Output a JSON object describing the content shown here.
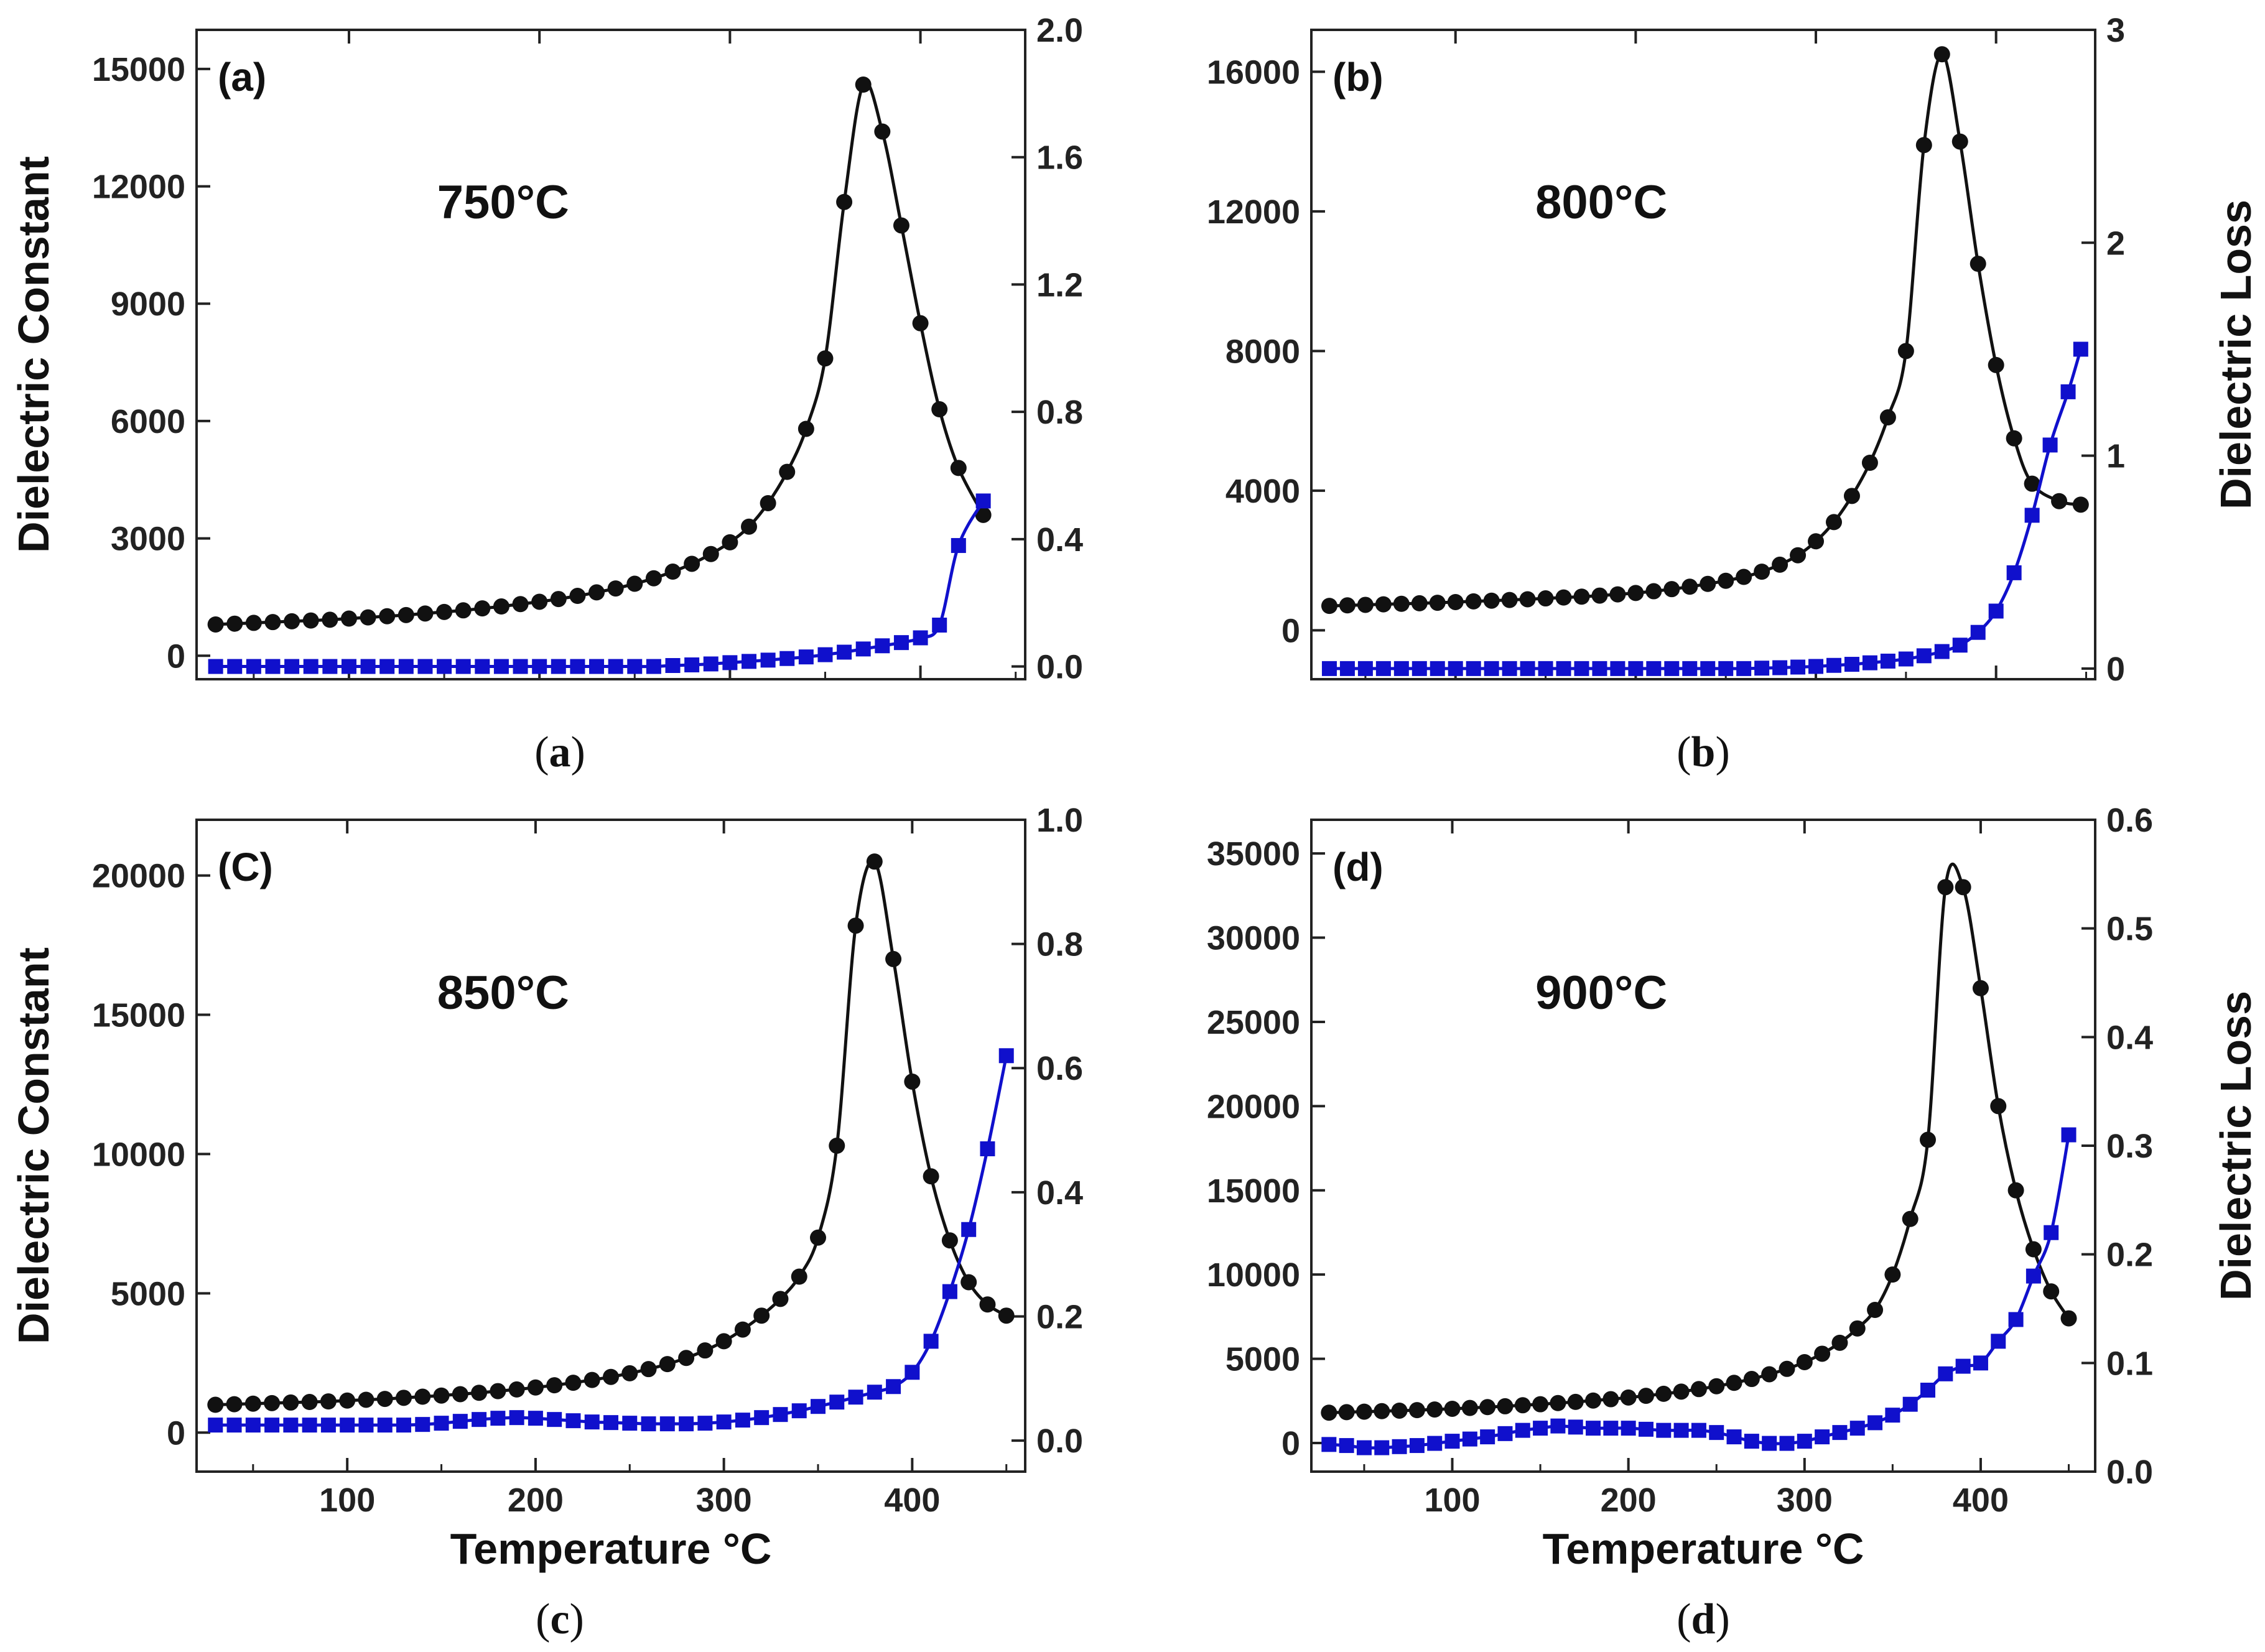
{
  "chart_data": [
    {
      "type": "line",
      "panel_tag": "(a)",
      "caption_letter": "a",
      "annotation": "750°C",
      "xlabel": "",
      "xlim": [
        20,
        455
      ],
      "xticks": [
        100,
        200,
        300,
        400
      ],
      "show_x_tick_labels": false,
      "ylabel_left": "Dielectric Constant",
      "ylim_left": [
        -600,
        16000
      ],
      "yticks_left": [
        0,
        3000,
        6000,
        9000,
        12000,
        15000
      ],
      "ylabel_right": "",
      "ylim_right": [
        -0.04,
        2.0
      ],
      "yticks_right": [
        0.0,
        0.4,
        0.8,
        1.2,
        1.6,
        2.0
      ],
      "series": [
        {
          "name": "Dielectric Constant",
          "axis": "left",
          "color": "#111111",
          "marker": "circle",
          "x": [
            30,
            40,
            50,
            60,
            70,
            80,
            90,
            100,
            110,
            120,
            130,
            140,
            150,
            160,
            170,
            180,
            190,
            200,
            210,
            220,
            230,
            240,
            250,
            260,
            270,
            280,
            290,
            300,
            310,
            320,
            330,
            340,
            350,
            360,
            370,
            380,
            390,
            400,
            410,
            420,
            433
          ],
          "y": [
            800,
            820,
            840,
            860,
            880,
            900,
            920,
            950,
            980,
            1010,
            1040,
            1080,
            1120,
            1160,
            1210,
            1260,
            1320,
            1380,
            1450,
            1530,
            1620,
            1720,
            1840,
            1980,
            2150,
            2350,
            2600,
            2900,
            3300,
            3900,
            4700,
            5800,
            7600,
            11600,
            14600,
            13400,
            11000,
            8500,
            6300,
            4800,
            3600
          ]
        },
        {
          "name": "Dielectric Loss",
          "axis": "right",
          "color": "#1010cc",
          "marker": "square",
          "x": [
            30,
            40,
            50,
            60,
            70,
            80,
            90,
            100,
            110,
            120,
            130,
            140,
            150,
            160,
            170,
            180,
            190,
            200,
            210,
            220,
            230,
            240,
            250,
            260,
            270,
            280,
            290,
            300,
            310,
            320,
            330,
            340,
            350,
            360,
            370,
            380,
            390,
            400,
            410,
            420,
            433
          ],
          "y": [
            0.0,
            0.0,
            0.0,
            0.0,
            0.0,
            0.0,
            0.0,
            0.0,
            0.0,
            0.0,
            0.0,
            0.0,
            0.0,
            0.0,
            0.0,
            0.0,
            0.0,
            0.0,
            0.0,
            0.0,
            0.0,
            0.0,
            0.0,
            0.0,
            0.003,
            0.005,
            0.008,
            0.012,
            0.016,
            0.02,
            0.025,
            0.03,
            0.037,
            0.045,
            0.055,
            0.065,
            0.075,
            0.09,
            0.13,
            0.38,
            0.52
          ]
        }
      ]
    },
    {
      "type": "line",
      "panel_tag": "(b)",
      "caption_letter": "b",
      "annotation": "800°C",
      "xlabel": "",
      "xlim": [
        20,
        455
      ],
      "xticks": [
        100,
        200,
        300,
        400
      ],
      "show_x_tick_labels": false,
      "ylabel_left": "",
      "ylim_left": [
        -1400,
        17200
      ],
      "yticks_left": [
        0,
        4000,
        8000,
        12000,
        16000
      ],
      "ylabel_right": "Dielectric Loss",
      "ylim_right": [
        -0.05,
        3.0
      ],
      "yticks_right": [
        0,
        1,
        2,
        3
      ],
      "series": [
        {
          "name": "Dielectric Constant",
          "axis": "left",
          "color": "#111111",
          "marker": "circle",
          "x": [
            30,
            40,
            50,
            60,
            70,
            80,
            90,
            100,
            110,
            120,
            130,
            140,
            150,
            160,
            170,
            180,
            190,
            200,
            210,
            220,
            230,
            240,
            250,
            260,
            270,
            280,
            290,
            300,
            310,
            320,
            330,
            340,
            350,
            360,
            370,
            380,
            390,
            400,
            410,
            420,
            435,
            447
          ],
          "y": [
            700,
            715,
            730,
            745,
            760,
            775,
            790,
            810,
            830,
            850,
            870,
            890,
            915,
            940,
            965,
            995,
            1030,
            1070,
            1120,
            1180,
            1250,
            1330,
            1420,
            1530,
            1680,
            1880,
            2150,
            2550,
            3100,
            3850,
            4800,
            6100,
            8000,
            13900,
            16500,
            14000,
            10500,
            7600,
            5500,
            4200,
            3700,
            3600
          ]
        },
        {
          "name": "Dielectric Loss",
          "axis": "right",
          "color": "#1010cc",
          "marker": "square",
          "x": [
            30,
            40,
            50,
            60,
            70,
            80,
            90,
            100,
            110,
            120,
            130,
            140,
            150,
            160,
            170,
            180,
            190,
            200,
            210,
            220,
            230,
            240,
            250,
            260,
            270,
            280,
            290,
            300,
            310,
            320,
            330,
            340,
            350,
            360,
            370,
            380,
            390,
            400,
            410,
            420,
            430,
            440,
            447
          ],
          "y": [
            0.0,
            0.0,
            0.0,
            0.0,
            0.0,
            0.0,
            0.0,
            0.0,
            0.0,
            0.0,
            0.0,
            0.0,
            0.0,
            0.0,
            0.0,
            0.0,
            0.0,
            0.0,
            0.0,
            0.0,
            0.0,
            0.0,
            0.0,
            0.0,
            0.002,
            0.004,
            0.007,
            0.01,
            0.015,
            0.02,
            0.027,
            0.035,
            0.045,
            0.06,
            0.08,
            0.11,
            0.17,
            0.27,
            0.45,
            0.72,
            1.05,
            1.3,
            1.5
          ]
        }
      ]
    },
    {
      "type": "line",
      "panel_tag": "(C)",
      "caption_letter": "c",
      "annotation": "850°C",
      "xlabel": "Temperature °C",
      "xlim": [
        20,
        460
      ],
      "xticks": [
        100,
        200,
        300,
        400
      ],
      "show_x_tick_labels": true,
      "ylabel_left": "Dielectric Constant",
      "ylim_left": [
        -1400,
        22000
      ],
      "yticks_left": [
        0,
        5000,
        10000,
        15000,
        20000
      ],
      "ylabel_right": "",
      "ylim_right": [
        -0.05,
        1.0
      ],
      "yticks_right": [
        0.0,
        0.2,
        0.4,
        0.6,
        0.8,
        1.0
      ],
      "series": [
        {
          "name": "Dielectric Constant",
          "axis": "left",
          "color": "#111111",
          "marker": "circle",
          "x": [
            30,
            40,
            50,
            60,
            70,
            80,
            90,
            100,
            110,
            120,
            130,
            140,
            150,
            160,
            170,
            180,
            190,
            200,
            210,
            220,
            230,
            240,
            250,
            260,
            270,
            280,
            290,
            300,
            310,
            320,
            330,
            340,
            350,
            360,
            370,
            380,
            390,
            400,
            410,
            420,
            430,
            440,
            450
          ],
          "y": [
            1000,
            1020,
            1040,
            1060,
            1080,
            1100,
            1120,
            1150,
            1180,
            1210,
            1250,
            1290,
            1330,
            1380,
            1430,
            1490,
            1550,
            1620,
            1700,
            1790,
            1890,
            2000,
            2130,
            2280,
            2460,
            2680,
            2950,
            3280,
            3700,
            4200,
            4800,
            5600,
            7000,
            10300,
            18200,
            20500,
            17000,
            12600,
            9200,
            6900,
            5400,
            4600,
            4200
          ]
        },
        {
          "name": "Dielectric Loss",
          "axis": "right",
          "color": "#1010cc",
          "marker": "square",
          "x": [
            30,
            40,
            50,
            60,
            70,
            80,
            90,
            100,
            110,
            120,
            130,
            140,
            150,
            160,
            170,
            180,
            190,
            200,
            210,
            220,
            230,
            240,
            250,
            260,
            270,
            280,
            290,
            300,
            310,
            320,
            330,
            340,
            350,
            360,
            370,
            380,
            390,
            400,
            410,
            420,
            430,
            440,
            450
          ],
          "y": [
            0.025,
            0.025,
            0.025,
            0.025,
            0.025,
            0.025,
            0.025,
            0.025,
            0.025,
            0.025,
            0.025,
            0.026,
            0.028,
            0.031,
            0.034,
            0.036,
            0.037,
            0.036,
            0.034,
            0.032,
            0.03,
            0.029,
            0.028,
            0.027,
            0.027,
            0.027,
            0.028,
            0.03,
            0.033,
            0.037,
            0.042,
            0.048,
            0.055,
            0.062,
            0.07,
            0.078,
            0.087,
            0.11,
            0.16,
            0.24,
            0.34,
            0.47,
            0.62
          ]
        }
      ]
    },
    {
      "type": "line",
      "panel_tag": "(d)",
      "caption_letter": "d",
      "annotation": "900°C",
      "xlabel": "Temperature °C",
      "xlim": [
        20,
        465
      ],
      "xticks": [
        100,
        200,
        300,
        400
      ],
      "show_x_tick_labels": true,
      "ylabel_left": "",
      "ylim_left": [
        -1700,
        37000
      ],
      "yticks_left": [
        0,
        5000,
        10000,
        15000,
        20000,
        25000,
        30000,
        35000
      ],
      "ylabel_right": "Dielectric Loss",
      "ylim_right": [
        0.0,
        0.6
      ],
      "yticks_right": [
        0.0,
        0.1,
        0.2,
        0.3,
        0.4,
        0.5,
        0.6
      ],
      "series": [
        {
          "name": "Dielectric Constant",
          "axis": "left",
          "color": "#111111",
          "marker": "circle",
          "x": [
            30,
            40,
            50,
            60,
            70,
            80,
            90,
            100,
            110,
            120,
            130,
            140,
            150,
            160,
            170,
            180,
            190,
            200,
            210,
            220,
            230,
            240,
            250,
            260,
            270,
            280,
            290,
            300,
            310,
            320,
            330,
            340,
            350,
            360,
            370,
            380,
            390,
            400,
            410,
            420,
            430,
            440,
            450
          ],
          "y": [
            1800,
            1830,
            1860,
            1890,
            1920,
            1950,
            1990,
            2030,
            2080,
            2130,
            2180,
            2240,
            2300,
            2370,
            2440,
            2520,
            2600,
            2700,
            2800,
            2920,
            3050,
            3200,
            3370,
            3570,
            3800,
            4080,
            4400,
            4800,
            5300,
            5950,
            6800,
            7900,
            10000,
            13300,
            18000,
            33000,
            33000,
            27000,
            20000,
            15000,
            11500,
            9000,
            7400
          ]
        },
        {
          "name": "Dielectric Loss",
          "axis": "right",
          "color": "#1010cc",
          "marker": "square",
          "x": [
            30,
            40,
            50,
            60,
            70,
            80,
            90,
            100,
            110,
            120,
            130,
            140,
            150,
            160,
            170,
            180,
            190,
            200,
            210,
            220,
            230,
            240,
            250,
            260,
            270,
            280,
            290,
            300,
            310,
            320,
            330,
            340,
            350,
            360,
            370,
            380,
            390,
            400,
            410,
            420,
            430,
            440,
            450
          ],
          "y": [
            0.025,
            0.024,
            0.022,
            0.022,
            0.023,
            0.024,
            0.026,
            0.028,
            0.03,
            0.032,
            0.035,
            0.038,
            0.04,
            0.042,
            0.041,
            0.04,
            0.04,
            0.04,
            0.039,
            0.038,
            0.038,
            0.038,
            0.036,
            0.032,
            0.028,
            0.026,
            0.026,
            0.028,
            0.032,
            0.036,
            0.04,
            0.045,
            0.052,
            0.062,
            0.075,
            0.09,
            0.097,
            0.1,
            0.12,
            0.14,
            0.18,
            0.22,
            0.31
          ]
        }
      ]
    }
  ]
}
